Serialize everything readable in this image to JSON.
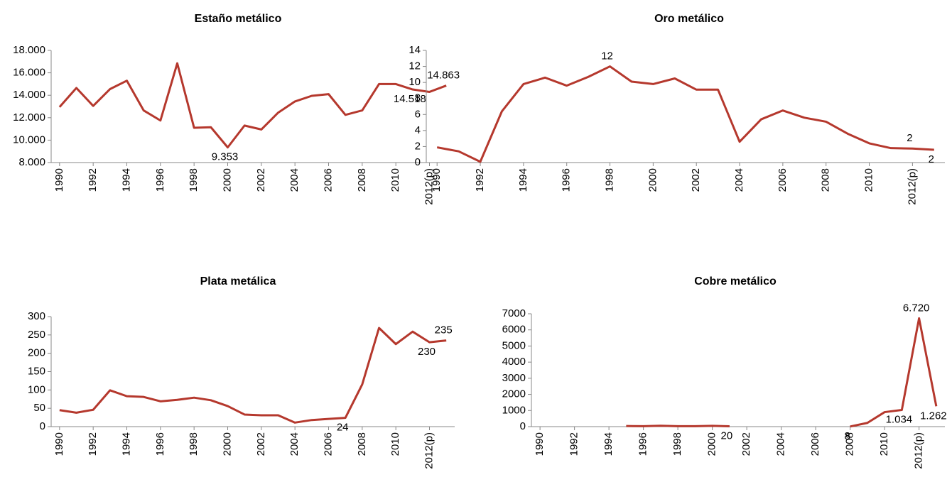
{
  "chart_data": [
    {
      "type": "line",
      "title": "Estaño metálico",
      "categories": [
        "1990",
        null,
        "1992",
        null,
        "1994",
        null,
        "1996",
        null,
        "1998",
        null,
        "2000",
        null,
        "2002",
        null,
        "2004",
        null,
        "2006",
        null,
        "2008",
        null,
        "2010",
        null,
        "2012(p)",
        null
      ],
      "values": [
        12950,
        14650,
        13050,
        14550,
        15300,
        12650,
        11750,
        16850,
        11100,
        11150,
        9353,
        11300,
        10950,
        12450,
        13450,
        13950,
        14100,
        12250,
        12650,
        15000,
        15000,
        14518,
        14300,
        14863
      ],
      "value_labels": [
        null,
        null,
        null,
        null,
        null,
        null,
        null,
        null,
        null,
        null,
        "9.353",
        null,
        null,
        null,
        null,
        null,
        null,
        null,
        null,
        null,
        null,
        "14.518",
        null,
        "14.863"
      ],
      "color": "#b5382d",
      "ylim": [
        8000,
        18000
      ],
      "yticks": [
        {
          "value": 8000,
          "label": "8.000"
        },
        {
          "value": 10000,
          "label": "10.000"
        },
        {
          "value": 12000,
          "label": "12.000"
        },
        {
          "value": 14000,
          "label": "14.000"
        },
        {
          "value": 16000,
          "label": "16.000"
        },
        {
          "value": 18000,
          "label": "18.000"
        }
      ]
    },
    {
      "type": "line",
      "title": "Oro metálico",
      "categories": [
        "1990",
        null,
        "1992",
        null,
        "1994",
        null,
        "1996",
        null,
        "1998",
        null,
        "2000",
        null,
        "2002",
        null,
        "2004",
        null,
        "2006",
        null,
        "2008",
        null,
        "2010",
        null,
        "2012(p)",
        null
      ],
      "values": [
        1.9,
        1.4,
        0.1,
        6.4,
        9.8,
        10.6,
        9.6,
        10.7,
        12,
        10.1,
        9.8,
        10.5,
        9.1,
        9.1,
        2.6,
        5.4,
        6.5,
        5.6,
        5.1,
        3.6,
        2.4,
        1.8,
        1.75,
        1.6
      ],
      "value_labels": [
        null,
        null,
        null,
        null,
        null,
        null,
        null,
        null,
        "12",
        null,
        null,
        null,
        null,
        null,
        null,
        null,
        null,
        null,
        null,
        null,
        null,
        null,
        "2",
        "2"
      ],
      "color": "#b5382d",
      "ylim": [
        0,
        14
      ],
      "yticks": [
        0,
        2,
        4,
        6,
        8,
        10,
        12,
        14
      ]
    },
    {
      "type": "line",
      "title": "Plata metálica",
      "categories": [
        "1990",
        null,
        "1992",
        null,
        "1994",
        null,
        "1996",
        null,
        "1998",
        null,
        "2000",
        null,
        "2002",
        null,
        "2004",
        null,
        "2006",
        null,
        "2008",
        null,
        "2010",
        null,
        "2012(p)",
        null
      ],
      "values": [
        45,
        38,
        46,
        99,
        83,
        81,
        69,
        73,
        79,
        72,
        56,
        33,
        31,
        31,
        11,
        18,
        21,
        24,
        115,
        269,
        225,
        259,
        230,
        235
      ],
      "value_labels": [
        null,
        null,
        null,
        null,
        null,
        null,
        null,
        null,
        null,
        null,
        null,
        null,
        null,
        null,
        null,
        null,
        null,
        "24",
        null,
        null,
        null,
        null,
        "230",
        "235"
      ],
      "color": "#b5382d",
      "ylim": [
        0,
        300
      ],
      "yticks": [
        0,
        50,
        100,
        150,
        200,
        250,
        300
      ]
    },
    {
      "type": "line",
      "title": "Cobre metálico",
      "categories": [
        "1990",
        null,
        "1992",
        null,
        "1994",
        null,
        "1996",
        null,
        "1998",
        null,
        "2000",
        null,
        "2002",
        null,
        "2004",
        null,
        "2006",
        null,
        "2008",
        null,
        "2010",
        null,
        "2012(p)",
        null
      ],
      "values": [
        null,
        null,
        null,
        null,
        null,
        40,
        25,
        55,
        30,
        30,
        50,
        20,
        null,
        null,
        null,
        null,
        null,
        null,
        8,
        230,
        900,
        1034,
        6720,
        1262
      ],
      "value_labels": [
        null,
        null,
        null,
        null,
        null,
        null,
        null,
        null,
        null,
        null,
        null,
        "20",
        null,
        null,
        null,
        null,
        null,
        null,
        "8",
        null,
        null,
        "1.034",
        "6.720",
        "1.262"
      ],
      "color": "#b5382d",
      "ylim": [
        0,
        7000
      ],
      "yticks": [
        0,
        1000,
        2000,
        3000,
        4000,
        5000,
        6000,
        7000
      ]
    }
  ]
}
